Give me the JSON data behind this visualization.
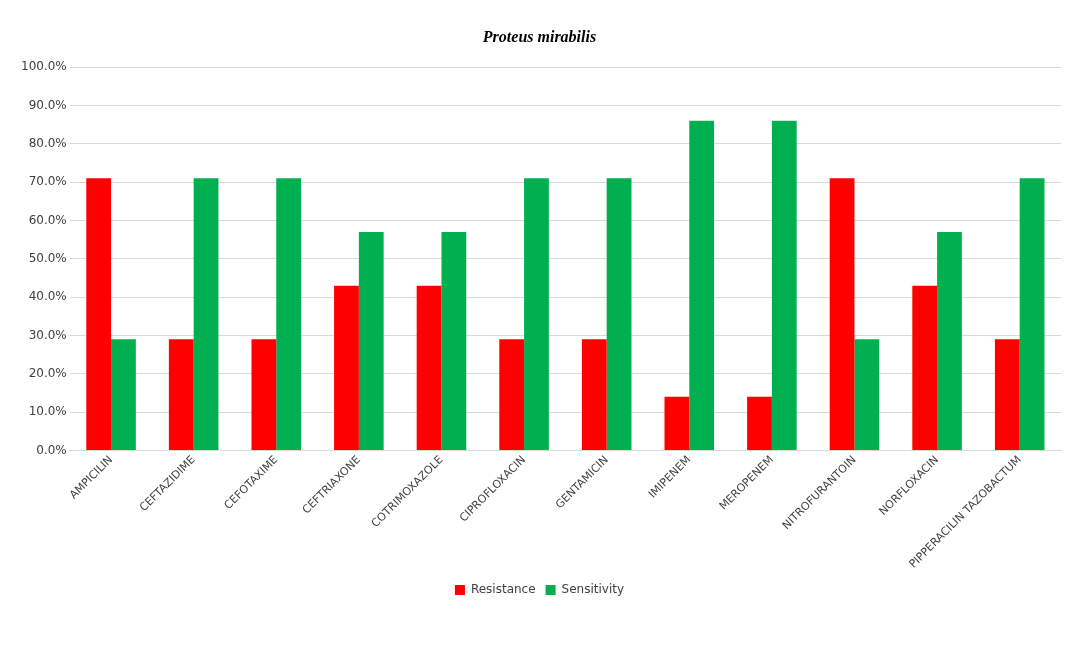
{
  "chart_data": {
    "type": "bar",
    "title": "Proteus mirabilis",
    "categories": [
      "AMPICILIN",
      "CEFTAZIDIME",
      "CEFOTAXIME",
      "CEFTRIAXONE",
      "COTRIMOXAZOLE",
      "CIPROFLOXACIN",
      "GENTAMICIN",
      "IMIPENEM",
      "MEROPENEM",
      "NITROFURANTOIN",
      "NORFLOXACIN",
      "PIPPERACILIN TAZOBACTUM"
    ],
    "series": [
      {
        "name": "Resistance",
        "color": "#ff0000",
        "values": [
          71,
          29,
          29,
          43,
          43,
          29,
          29,
          14,
          14,
          71,
          43,
          29
        ]
      },
      {
        "name": "Sensitivity",
        "color": "#00b050",
        "values": [
          29,
          71,
          71,
          57,
          57,
          71,
          71,
          86,
          86,
          29,
          57,
          71
        ]
      }
    ],
    "ylim": [
      0,
      100
    ],
    "yticks": [
      {
        "value": 0,
        "label": "0.0%"
      },
      {
        "value": 10,
        "label": "10.0%"
      },
      {
        "value": 20,
        "label": "20.0%"
      },
      {
        "value": 30,
        "label": "30.0%"
      },
      {
        "value": 40,
        "label": "40.0%"
      },
      {
        "value": 50,
        "label": "50.0%"
      },
      {
        "value": 60,
        "label": "60.0%"
      },
      {
        "value": 70,
        "label": "70.0%"
      },
      {
        "value": 80,
        "label": "80.0%"
      },
      {
        "value": 90,
        "label": "90.0%"
      },
      {
        "value": 100,
        "label": "100.0%"
      }
    ],
    "grid": "y",
    "legend": "bottom"
  }
}
